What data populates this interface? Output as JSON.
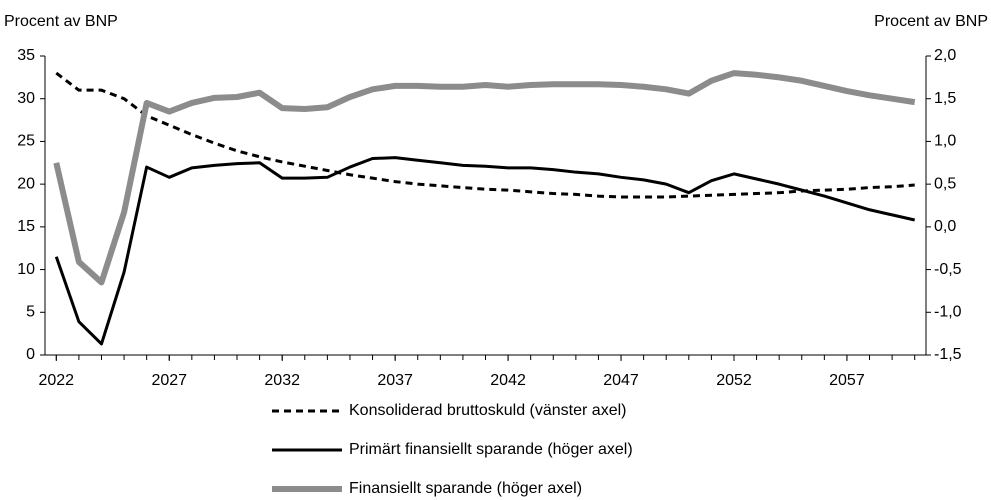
{
  "chart_data": {
    "type": "line",
    "y_label": "Procent av BNP",
    "y2_label": "Procent av BNP",
    "x": [
      2022,
      2023,
      2024,
      2025,
      2026,
      2027,
      2028,
      2029,
      2030,
      2031,
      2032,
      2033,
      2034,
      2035,
      2036,
      2037,
      2038,
      2039,
      2040,
      2041,
      2042,
      2043,
      2044,
      2045,
      2046,
      2047,
      2048,
      2049,
      2050,
      2051,
      2052,
      2053,
      2054,
      2055,
      2056,
      2057,
      2058,
      2059,
      2060
    ],
    "xlim": [
      2021.5,
      2060.5
    ],
    "xticks": [
      2022,
      2027,
      2032,
      2037,
      2042,
      2047,
      2052,
      2057
    ],
    "ylim": [
      0,
      35
    ],
    "yticks": [
      0,
      5,
      10,
      15,
      20,
      25,
      30,
      35
    ],
    "y2lim": [
      -1.5,
      2.0
    ],
    "y2ticks": [
      {
        "value": -1.5,
        "label": "-1,5"
      },
      {
        "value": -1.0,
        "label": "-1,0"
      },
      {
        "value": -0.5,
        "label": "-0,5"
      },
      {
        "value": 0,
        "label": "0,0"
      },
      {
        "value": 0.5,
        "label": "0,5"
      },
      {
        "value": 1.0,
        "label": "1,0"
      },
      {
        "value": 1.5,
        "label": "1,5"
      },
      {
        "value": 2.0,
        "label": "2,0"
      }
    ],
    "series": [
      {
        "name": "Konsoliderad bruttoskuld (vänster axel)",
        "color": "#000000",
        "style": "dashed",
        "axis": "y",
        "values": [
          33,
          31,
          31,
          30,
          28,
          26.9,
          25.8,
          24.8,
          23.9,
          23.2,
          22.6,
          22.1,
          21.6,
          21.1,
          20.7,
          20.3,
          20.0,
          19.8,
          19.6,
          19.4,
          19.3,
          19.1,
          18.9,
          18.8,
          18.6,
          18.5,
          18.5,
          18.5,
          18.6,
          18.7,
          18.8,
          18.9,
          19.0,
          19.2,
          19.3,
          19.4,
          19.6,
          19.7,
          19.9
        ]
      },
      {
        "name": "Primärt finansiellt sparande (höger axel)",
        "color": "#000000",
        "style": "solid",
        "axis": "y2",
        "values": [
          -0.35,
          -1.11,
          -1.37,
          -0.53,
          0.7,
          0.58,
          0.69,
          0.72,
          0.74,
          0.75,
          0.57,
          0.57,
          0.58,
          0.7,
          0.8,
          0.81,
          0.78,
          0.75,
          0.72,
          0.71,
          0.69,
          0.69,
          0.67,
          0.64,
          0.62,
          0.58,
          0.55,
          0.5,
          0.4,
          0.54,
          0.62,
          0.56,
          0.5,
          0.43,
          0.36,
          0.28,
          0.2,
          0.14,
          0.08
        ]
      },
      {
        "name": "Finansiellt sparande (höger axel)",
        "color": "#8c8c8c",
        "style": "thick",
        "axis": "y2",
        "values": [
          0.75,
          -0.41,
          -0.65,
          0.17,
          1.45,
          1.35,
          1.45,
          1.51,
          1.52,
          1.57,
          1.39,
          1.38,
          1.4,
          1.52,
          1.61,
          1.65,
          1.65,
          1.64,
          1.64,
          1.66,
          1.64,
          1.66,
          1.67,
          1.67,
          1.67,
          1.66,
          1.64,
          1.61,
          1.56,
          1.71,
          1.8,
          1.78,
          1.75,
          1.71,
          1.65,
          1.59,
          1.54,
          1.5,
          1.46
        ]
      }
    ]
  }
}
